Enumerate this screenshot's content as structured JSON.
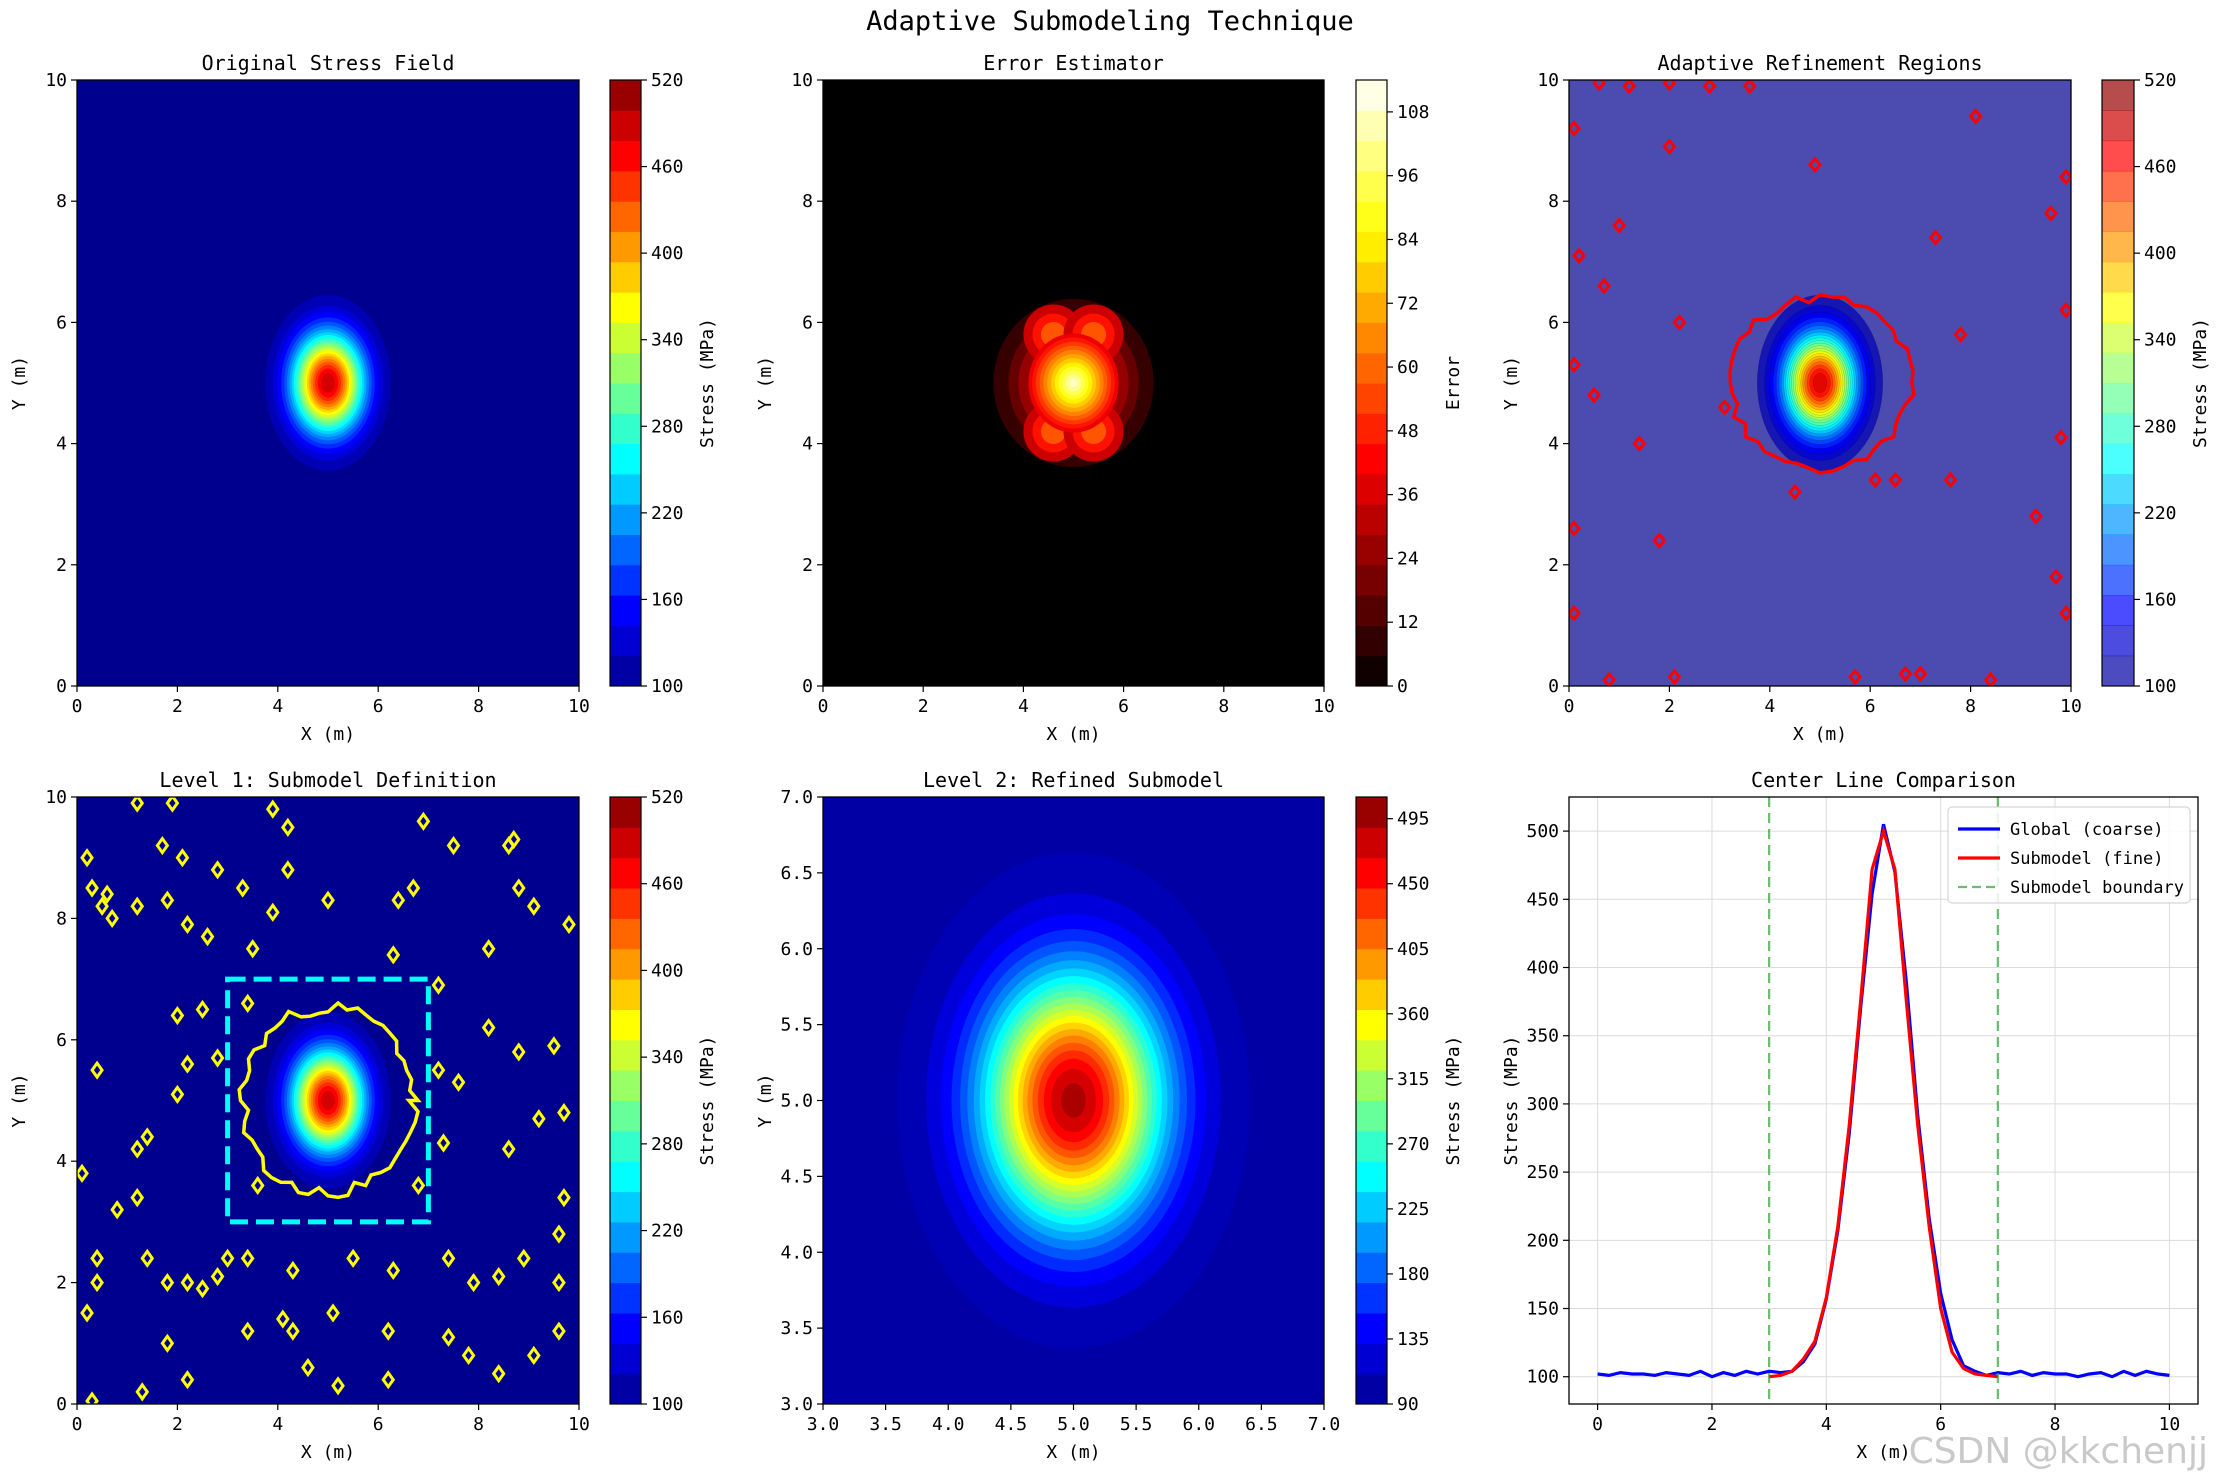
{
  "figure": {
    "title": "Adaptive Submodeling Technique",
    "watermark": "CSDN @kkchenjj"
  },
  "chart_data": [
    {
      "type": "heatmap",
      "title": "Original Stress Field",
      "xlabel": "X (m)",
      "ylabel": "Y (m)",
      "xlim": [
        0,
        10
      ],
      "ylim": [
        0,
        10
      ],
      "xticks": [
        0,
        2,
        4,
        6,
        8,
        10
      ],
      "yticks": [
        0,
        2,
        4,
        6,
        8,
        10
      ],
      "colormap": "jet",
      "field": {
        "background": 100,
        "peak": 500,
        "peak_at": [
          5,
          5
        ]
      },
      "colorbar": {
        "label": "Stress (MPa)",
        "range": [
          100,
          520
        ],
        "ticks": [
          100,
          160,
          220,
          280,
          340,
          400,
          460,
          520
        ]
      }
    },
    {
      "type": "heatmap",
      "title": "Error Estimator",
      "xlabel": "X (m)",
      "ylabel": "Y (m)",
      "xlim": [
        0,
        10
      ],
      "ylim": [
        0,
        10
      ],
      "xticks": [
        0,
        2,
        4,
        6,
        8,
        10
      ],
      "yticks": [
        0,
        2,
        4,
        6,
        8,
        10
      ],
      "colormap": "hot",
      "field": {
        "background": 0,
        "peak": 114,
        "peak_at": [
          5,
          5
        ],
        "lobes_at": [
          [
            4.6,
            5.8
          ],
          [
            5.4,
            5.8
          ],
          [
            4.6,
            4.2
          ],
          [
            5.4,
            4.2
          ]
        ]
      },
      "colorbar": {
        "label": "Error",
        "range": [
          0,
          114
        ],
        "ticks": [
          0,
          12,
          24,
          36,
          48,
          60,
          72,
          84,
          96,
          108
        ]
      }
    },
    {
      "type": "heatmap",
      "title": "Adaptive Refinement Regions",
      "xlabel": "X (m)",
      "ylabel": "Y (m)",
      "xlim": [
        0,
        10
      ],
      "ylim": [
        0,
        10
      ],
      "xticks": [
        0,
        2,
        4,
        6,
        8,
        10
      ],
      "yticks": [
        0,
        2,
        4,
        6,
        8,
        10
      ],
      "colormap": "jet",
      "alpha": 0.7,
      "field": {
        "background": 100,
        "peak": 500,
        "peak_at": [
          5,
          5
        ]
      },
      "refinement_contour": {
        "color": "#ff0000",
        "center": [
          5,
          5
        ],
        "half_width": 1.8,
        "half_height": 1.7
      },
      "refinement_spots": [
        [
          0.6,
          9.95
        ],
        [
          1.2,
          9.9
        ],
        [
          2,
          9.95
        ],
        [
          3.6,
          9.9
        ],
        [
          0.1,
          9.2
        ],
        [
          2,
          8.9
        ],
        [
          2.8,
          9.9
        ],
        [
          8.1,
          9.4
        ],
        [
          0.2,
          7.1
        ],
        [
          1,
          7.6
        ],
        [
          0.7,
          6.6
        ],
        [
          4.9,
          8.6
        ],
        [
          9.9,
          8.4
        ],
        [
          9.6,
          7.8
        ],
        [
          7.3,
          7.4
        ],
        [
          2.2,
          6
        ],
        [
          7.8,
          5.8
        ],
        [
          0.1,
          5.3
        ],
        [
          0.5,
          4.8
        ],
        [
          3.1,
          4.6
        ],
        [
          9.9,
          6.2
        ],
        [
          1.4,
          4
        ],
        [
          9.8,
          4.1
        ],
        [
          4.5,
          3.2
        ],
        [
          6.5,
          3.4
        ],
        [
          7.6,
          3.4
        ],
        [
          6.1,
          3.4
        ],
        [
          1.8,
          2.4
        ],
        [
          0.1,
          2.6
        ],
        [
          9.3,
          2.8
        ],
        [
          9.7,
          1.8
        ],
        [
          0.1,
          1.2
        ],
        [
          9.9,
          1.2
        ],
        [
          2.1,
          0.15
        ],
        [
          5.7,
          0.15
        ],
        [
          6.7,
          0.2
        ],
        [
          7,
          0.2
        ],
        [
          8.4,
          0.1
        ],
        [
          0.8,
          0.1
        ]
      ],
      "colorbar": {
        "label": "Stress (MPa)",
        "range": [
          100,
          520
        ],
        "ticks": [
          100,
          160,
          220,
          280,
          340,
          400,
          460,
          520
        ]
      }
    },
    {
      "type": "heatmap",
      "title": "Level 1: Submodel Definition",
      "xlabel": "X (m)",
      "ylabel": "Y (m)",
      "xlim": [
        0,
        10
      ],
      "ylim": [
        0,
        10
      ],
      "xticks": [
        0,
        2,
        4,
        6,
        8,
        10
      ],
      "yticks": [
        0,
        2,
        4,
        6,
        8,
        10
      ],
      "colormap": "jet",
      "field": {
        "background": 100,
        "peak": 500,
        "peak_at": [
          5,
          5
        ]
      },
      "submodel_box": {
        "x": [
          3,
          7
        ],
        "y": [
          3,
          7
        ],
        "color": "#00ffff"
      },
      "level_contour": {
        "color": "#ffff00",
        "center": [
          5,
          5
        ],
        "half_width": 1.7,
        "half_height": 1.85
      },
      "level_spots": [
        [
          1.2,
          9.9
        ],
        [
          1.9,
          9.9
        ],
        [
          4.2,
          9.5
        ],
        [
          3.9,
          9.8
        ],
        [
          0.2,
          9
        ],
        [
          0.3,
          8.5
        ],
        [
          0.6,
          8.4
        ],
        [
          1.7,
          9.2
        ],
        [
          2.1,
          9
        ],
        [
          1.2,
          8.2
        ],
        [
          2.8,
          8.8
        ],
        [
          4.2,
          8.8
        ],
        [
          5,
          8.3
        ],
        [
          6.4,
          8.3
        ],
        [
          7.5,
          9.2
        ],
        [
          0.5,
          8.2
        ],
        [
          0.7,
          8
        ],
        [
          1.8,
          8.3
        ],
        [
          3.3,
          8.5
        ],
        [
          3.5,
          7.5
        ],
        [
          2.6,
          7.7
        ],
        [
          2.2,
          7.9
        ],
        [
          3.9,
          8.1
        ],
        [
          6.7,
          8.5
        ],
        [
          6.9,
          9.6
        ],
        [
          8.8,
          8.5
        ],
        [
          9.1,
          8.2
        ],
        [
          9.8,
          7.9
        ],
        [
          8.2,
          7.5
        ],
        [
          6.3,
          7.4
        ],
        [
          7.2,
          6.9
        ],
        [
          3.4,
          6.6
        ],
        [
          2.5,
          6.5
        ],
        [
          2.8,
          5.7
        ],
        [
          8.2,
          6.2
        ],
        [
          8.8,
          5.8
        ],
        [
          0.4,
          5.5
        ],
        [
          2,
          6.4
        ],
        [
          2.2,
          5.6
        ],
        [
          2,
          5.1
        ],
        [
          9.5,
          5.9
        ],
        [
          7.2,
          5.5
        ],
        [
          7.6,
          5.3
        ],
        [
          9.7,
          4.8
        ],
        [
          1.2,
          4.2
        ],
        [
          1.4,
          4.4
        ],
        [
          7.3,
          4.3
        ],
        [
          8.6,
          4.2
        ],
        [
          9.2,
          4.7
        ],
        [
          0.1,
          3.8
        ],
        [
          1.2,
          3.4
        ],
        [
          0.8,
          3.2
        ],
        [
          3.6,
          3.6
        ],
        [
          6.8,
          3.6
        ],
        [
          9.7,
          3.4
        ],
        [
          9.6,
          2.8
        ],
        [
          0.4,
          2.4
        ],
        [
          1.4,
          2.4
        ],
        [
          1.8,
          2
        ],
        [
          2.2,
          2
        ],
        [
          2.5,
          1.9
        ],
        [
          2.8,
          2.1
        ],
        [
          3,
          2.4
        ],
        [
          3.4,
          2.4
        ],
        [
          4.3,
          2.2
        ],
        [
          5.5,
          2.4
        ],
        [
          6.3,
          2.2
        ],
        [
          7.4,
          2.4
        ],
        [
          7.9,
          2
        ],
        [
          8.4,
          2.1
        ],
        [
          8.9,
          2.4
        ],
        [
          9.6,
          2
        ],
        [
          0.2,
          1.5
        ],
        [
          0.4,
          2
        ],
        [
          1.8,
          1
        ],
        [
          3.4,
          1.2
        ],
        [
          4.1,
          1.4
        ],
        [
          4.3,
          1.2
        ],
        [
          5.1,
          1.5
        ],
        [
          6.2,
          1.2
        ],
        [
          7.4,
          1.1
        ],
        [
          7.8,
          0.8
        ],
        [
          9.1,
          0.8
        ],
        [
          9.6,
          1.2
        ],
        [
          1.3,
          0.2
        ],
        [
          2.2,
          0.4
        ],
        [
          4.6,
          0.6
        ],
        [
          5.2,
          0.3
        ],
        [
          6.2,
          0.4
        ],
        [
          8.4,
          0.5
        ],
        [
          0.3,
          0.05
        ],
        [
          8.7,
          9.3
        ],
        [
          8.6,
          9.2
        ]
      ],
      "colorbar": {
        "label": "Stress (MPa)",
        "range": [
          100,
          520
        ],
        "ticks": [
          100,
          160,
          220,
          280,
          340,
          400,
          460,
          520
        ]
      }
    },
    {
      "type": "heatmap",
      "title": "Level 2: Refined Submodel",
      "xlabel": "X (m)",
      "ylabel": "Y (m)",
      "xlim": [
        3,
        7
      ],
      "ylim": [
        3,
        7
      ],
      "xticks": [
        "3.0",
        "3.5",
        "4.0",
        "4.5",
        "5.0",
        "5.5",
        "6.0",
        "6.5",
        "7.0"
      ],
      "yticks": [
        "3.0",
        "3.5",
        "4.0",
        "4.5",
        "5.0",
        "5.5",
        "6.0",
        "6.5",
        "7.0"
      ],
      "colormap": "jet",
      "field": {
        "background": 100,
        "peak": 500,
        "peak_at": [
          5,
          5
        ]
      },
      "colorbar": {
        "label": "Stress (MPa)",
        "range": [
          90,
          510
        ],
        "ticks": [
          90,
          135,
          180,
          225,
          270,
          315,
          360,
          405,
          450,
          495
        ]
      }
    },
    {
      "type": "line",
      "title": "Center Line Comparison",
      "xlabel": "X (m)",
      "ylabel": "Stress (MPa)",
      "xlim": [
        -0.5,
        10.5
      ],
      "ylim": [
        80,
        525
      ],
      "xticks": [
        0,
        2,
        4,
        6,
        8,
        10
      ],
      "yticks": [
        100,
        150,
        200,
        250,
        300,
        350,
        400,
        450,
        500
      ],
      "grid": true,
      "legend": "top-right",
      "series": [
        {
          "name": "Global (coarse)",
          "color": "#0000ff",
          "x": [
            0,
            0.2,
            0.4,
            0.6,
            0.8,
            1,
            1.2,
            1.4,
            1.6,
            1.8,
            2,
            2.2,
            2.4,
            2.6,
            2.8,
            3,
            3.2,
            3.4,
            3.6,
            3.8,
            4,
            4.2,
            4.4,
            4.6,
            4.8,
            5,
            5.2,
            5.4,
            5.6,
            5.8,
            6,
            6.2,
            6.4,
            6.6,
            6.8,
            7,
            7.2,
            7.4,
            7.6,
            7.8,
            8,
            8.2,
            8.4,
            8.6,
            8.8,
            9,
            9.2,
            9.4,
            9.6,
            9.8,
            10
          ],
          "y": [
            102,
            101,
            103,
            102,
            102,
            101,
            103,
            102,
            101,
            104,
            100,
            103,
            101,
            104,
            102,
            104,
            103,
            104,
            111,
            124,
            157,
            207,
            278,
            370,
            454,
            505,
            470,
            389,
            291,
            216,
            161,
            127,
            108,
            104,
            101,
            103,
            102,
            104,
            101,
            103,
            102,
            102,
            100,
            102,
            103,
            100,
            104,
            101,
            104,
            102,
            101
          ]
        },
        {
          "name": "Submodel (fine)",
          "color": "#ff0000",
          "x": [
            3,
            3.2,
            3.4,
            3.6,
            3.8,
            4,
            4.2,
            4.4,
            4.6,
            4.8,
            5,
            5.2,
            5.4,
            5.6,
            5.8,
            6,
            6.2,
            6.4,
            6.6,
            6.8,
            7
          ],
          "y": [
            100,
            101,
            104,
            113,
            126,
            158,
            210,
            284,
            375,
            472,
            500,
            472,
            375,
            284,
            210,
            150,
            118,
            106,
            102,
            101,
            100
          ]
        },
        {
          "name": "Submodel boundary",
          "color": "#2ca02c",
          "style": "dashed",
          "vlines": [
            3,
            7
          ]
        }
      ]
    }
  ]
}
